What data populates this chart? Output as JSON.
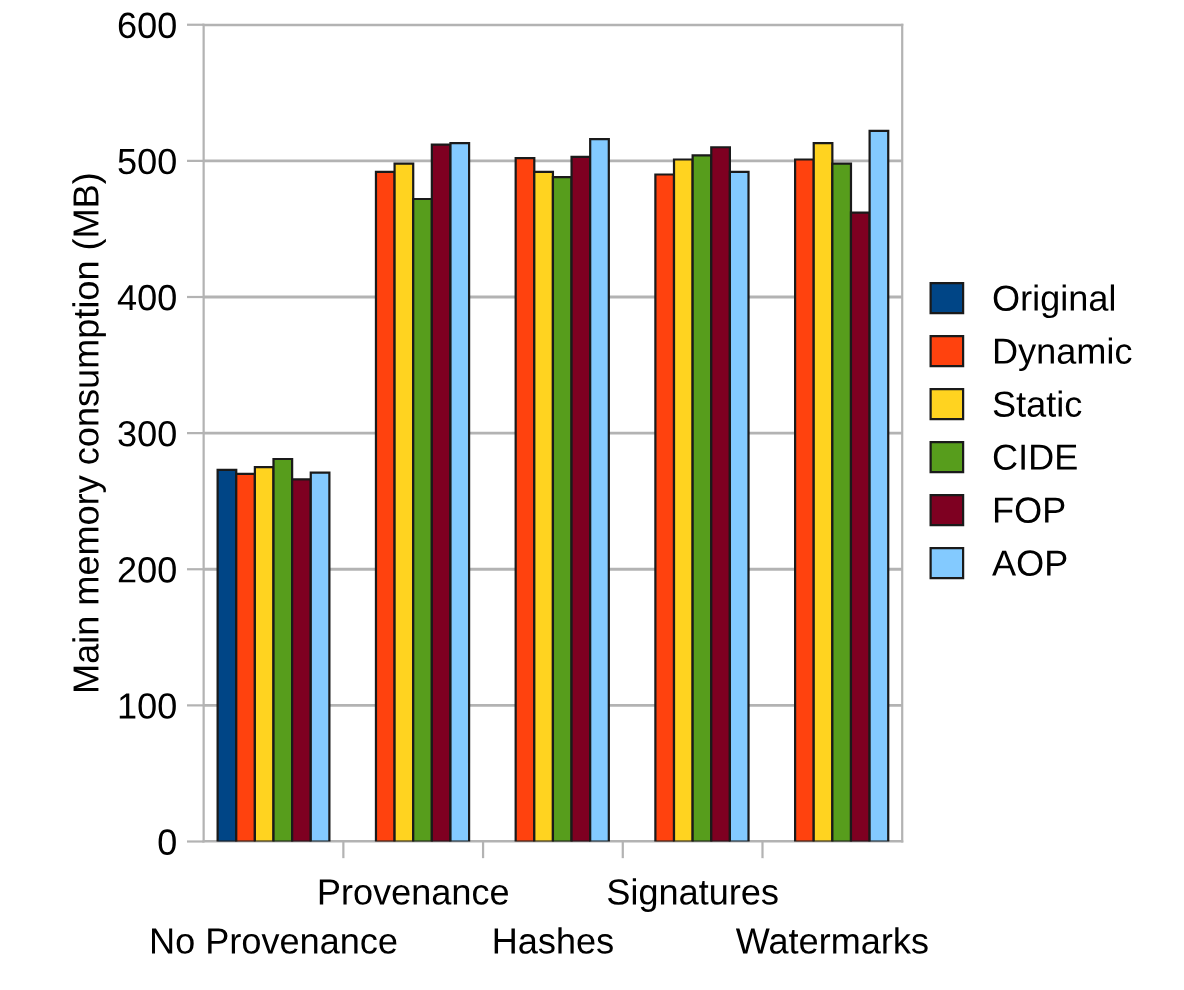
{
  "chart_data": {
    "type": "bar",
    "ylabel": "Main memory consumption (MB)",
    "categories": [
      "No Provenance",
      "Provenance",
      "Hashes",
      "Signatures",
      "Watermarks"
    ],
    "series": [
      {
        "name": "Original",
        "color": "#004586",
        "values": [
          273,
          null,
          null,
          null,
          null
        ]
      },
      {
        "name": "Dynamic",
        "color": "#ff420e",
        "values": [
          270,
          492,
          502,
          490,
          501
        ]
      },
      {
        "name": "Static",
        "color": "#ffd320",
        "values": [
          275,
          498,
          492,
          501,
          513
        ]
      },
      {
        "name": "CIDE",
        "color": "#579d1c",
        "values": [
          281,
          472,
          488,
          504,
          498
        ]
      },
      {
        "name": "FOP",
        "color": "#7e0021",
        "values": [
          266,
          512,
          503,
          510,
          462
        ]
      },
      {
        "name": "AOP",
        "color": "#83caff",
        "values": [
          271,
          513,
          516,
          492,
          522
        ]
      }
    ],
    "ylim": [
      0,
      600
    ],
    "yticks": [
      0,
      100,
      200,
      300,
      400,
      500,
      600
    ],
    "grid": "y",
    "legend": "right"
  }
}
